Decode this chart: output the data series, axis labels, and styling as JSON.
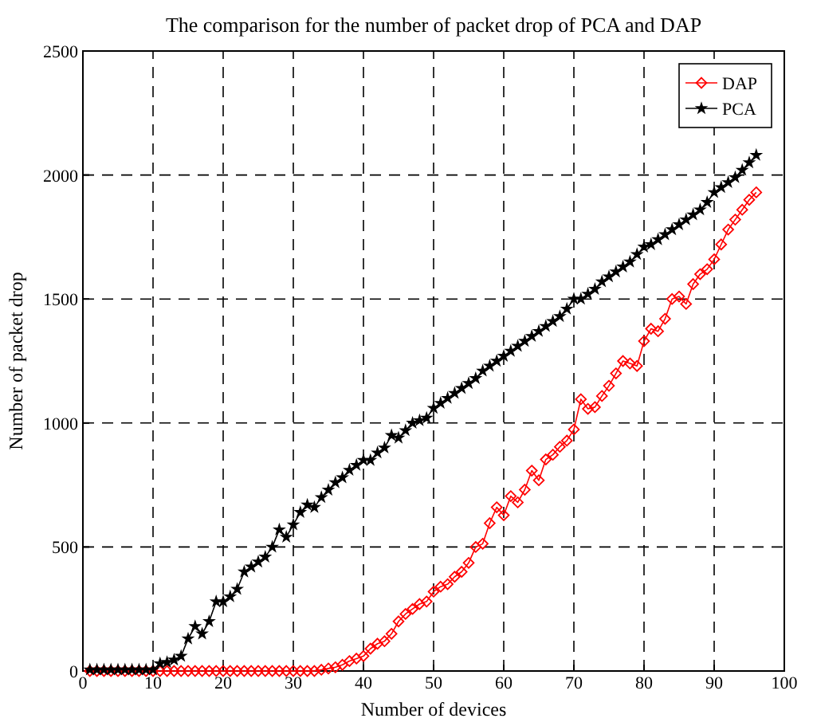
{
  "chart_data": {
    "type": "line",
    "title": "The comparison for the number of packet drop of PCA and DAP",
    "xlabel": "Number of devices",
    "ylabel": "Number of packet drop",
    "x": [
      1,
      2,
      3,
      4,
      5,
      6,
      7,
      8,
      9,
      10,
      11,
      12,
      13,
      14,
      15,
      16,
      17,
      18,
      19,
      20,
      21,
      22,
      23,
      24,
      25,
      26,
      27,
      28,
      29,
      30,
      31,
      32,
      33,
      34,
      35,
      36,
      37,
      38,
      39,
      40,
      41,
      42,
      43,
      44,
      45,
      46,
      47,
      48,
      49,
      50,
      51,
      52,
      53,
      54,
      55,
      56,
      57,
      58,
      59,
      60,
      61,
      62,
      63,
      64,
      65,
      66,
      67,
      68,
      69,
      70,
      71,
      72,
      73,
      74,
      75,
      76,
      77,
      78,
      79,
      80,
      81,
      82,
      83,
      84,
      85,
      86,
      87,
      88,
      89,
      90,
      91,
      92,
      93,
      94,
      95,
      96
    ],
    "series": [
      {
        "name": "DAP",
        "color": "#ff0000",
        "marker": "diamond",
        "values": [
          0,
          0,
          0,
          0,
          0,
          0,
          0,
          0,
          0,
          0,
          0,
          0,
          0,
          0,
          0,
          0,
          0,
          0,
          0,
          0,
          0,
          0,
          0,
          0,
          0,
          0,
          0,
          0,
          0,
          0,
          0,
          0,
          0,
          5,
          10,
          15,
          25,
          40,
          50,
          60,
          90,
          110,
          120,
          150,
          200,
          230,
          250,
          270,
          280,
          320,
          340,
          350,
          380,
          400,
          436,
          500,
          513,
          596,
          660,
          628,
          705,
          680,
          731,
          808,
          769,
          853,
          872,
          904,
          929,
          974,
          1096,
          1057,
          1064,
          1109,
          1150,
          1200,
          1250,
          1240,
          1230,
          1330,
          1380,
          1370,
          1420,
          1500,
          1510,
          1480,
          1560,
          1600,
          1620,
          1660,
          1720,
          1780,
          1820,
          1860,
          1900,
          1930
        ]
      },
      {
        "name": "PCA",
        "color": "#000000",
        "marker": "star",
        "values": [
          5,
          5,
          5,
          5,
          5,
          5,
          5,
          5,
          5,
          5,
          30,
          35,
          45,
          60,
          130,
          180,
          150,
          200,
          280,
          280,
          300,
          330,
          400,
          420,
          440,
          460,
          500,
          570,
          540,
          590,
          640,
          670,
          660,
          700,
          730,
          760,
          780,
          810,
          830,
          850,
          850,
          880,
          900,
          950,
          940,
          970,
          1000,
          1010,
          1020,
          1060,
          1080,
          1100,
          1120,
          1140,
          1160,
          1180,
          1210,
          1230,
          1250,
          1270,
          1290,
          1310,
          1330,
          1350,
          1370,
          1390,
          1410,
          1430,
          1460,
          1500,
          1500,
          1520,
          1540,
          1570,
          1590,
          1610,
          1630,
          1650,
          1680,
          1710,
          1720,
          1740,
          1760,
          1780,
          1800,
          1820,
          1840,
          1860,
          1890,
          1930,
          1950,
          1970,
          1990,
          2020,
          2050,
          2080
        ]
      }
    ],
    "xlim": [
      0,
      100
    ],
    "xticks": [
      0,
      10,
      20,
      30,
      40,
      50,
      60,
      70,
      80,
      90,
      100
    ],
    "ylim": [
      0,
      2500
    ],
    "yticks": [
      0,
      500,
      1000,
      1500,
      2000,
      2500
    ],
    "grid": true,
    "legend": "top right",
    "line_style": "solid"
  }
}
